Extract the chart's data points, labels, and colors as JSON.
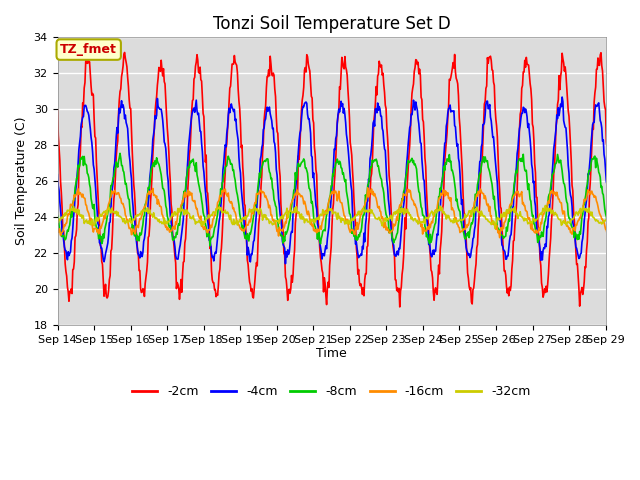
{
  "title": "Tonzi Soil Temperature Set D",
  "xlabel": "Time",
  "ylabel": "Soil Temperature (C)",
  "ylim": [
    18,
    34
  ],
  "ytick_values": [
    18,
    20,
    22,
    24,
    26,
    28,
    30,
    32,
    34
  ],
  "xtick_labels": [
    "Sep 14",
    "Sep 15",
    "Sep 16",
    "Sep 17",
    "Sep 18",
    "Sep 19",
    "Sep 20",
    "Sep 21",
    "Sep 22",
    "Sep 23",
    "Sep 24",
    "Sep 25",
    "Sep 26",
    "Sep 27",
    "Sep 28",
    "Sep 29"
  ],
  "series_labels": [
    "-2cm",
    "-4cm",
    "-8cm",
    "-16cm",
    "-32cm"
  ],
  "series_colors": [
    "#FF0000",
    "#0000FF",
    "#00CC00",
    "#FF8C00",
    "#CCCC00"
  ],
  "line_width": 1.2,
  "annotation_text": "TZ_fmet",
  "annotation_color": "#CC0000",
  "annotation_bg": "#FFFFCC",
  "annotation_border": "#AAAA00",
  "background_color": "#DCDCDC",
  "title_fontsize": 12,
  "axis_label_fontsize": 9,
  "tick_fontsize": 8,
  "legend_fontsize": 9,
  "n_per_day": 48,
  "n_days": 16,
  "depth_2cm_amp": 6.5,
  "depth_2cm_mean": 26.2,
  "depth_4cm_amp": 4.2,
  "depth_4cm_mean": 26.0,
  "depth_8cm_amp": 2.2,
  "depth_8cm_mean": 25.0,
  "depth_16cm_amp": 1.1,
  "depth_16cm_mean": 24.3,
  "depth_32cm_amp": 0.35,
  "depth_32cm_mean": 24.05
}
